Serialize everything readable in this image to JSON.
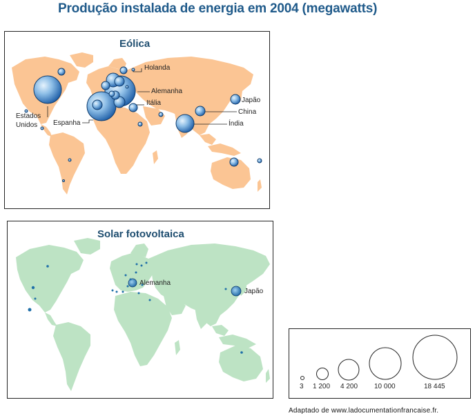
{
  "title": "Produção instalada de energia em 2004 (megawatts)",
  "maps": {
    "wind": {
      "title": "Eólica",
      "land_color": "#fbc594",
      "labels": {
        "holanda": "Holanda",
        "alemanha": "Alemanha",
        "italia": "Itália",
        "espanha": "Espanha",
        "estados_unidos_1": "Estados",
        "estados_unidos_2": "Unidos",
        "japao": "Japão",
        "china": "China",
        "india": "Índia"
      }
    },
    "solar": {
      "title": "Solar fotovoltaica",
      "land_color": "#bde3c4",
      "labels": {
        "alemanha": "Alemanha",
        "japao": "Japão"
      }
    }
  },
  "legend": {
    "items": [
      {
        "label": "3",
        "value": 3
      },
      {
        "label": "1 200",
        "value": 1200
      },
      {
        "label": "4 200",
        "value": 4200
      },
      {
        "label": "10 000",
        "value": 10000
      },
      {
        "label": "18 445",
        "value": 18445
      }
    ]
  },
  "source": "Adaptado de www.ladocumentationfrancaise.fr.",
  "colors": {
    "title": "#1f5a8a",
    "bubble_light": "#d8ecfa",
    "bubble_mid": "#7fb3e0",
    "bubble_dark": "#1f5fa8",
    "solar_dot": "#1f6fa8"
  }
}
